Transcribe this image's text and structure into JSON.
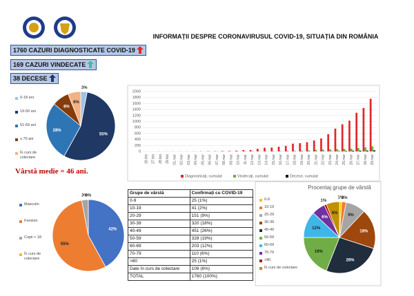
{
  "header": {
    "title": "INFORMAȚII DESPRE CORONAVIRUSUL COVID-19, SITUAȚIA DIN ROMÂNIA"
  },
  "stats": [
    "1760 CAZURI DIAGNOSTICATE COVID-19",
    "169 CAZURI VINDECATE",
    "38 DECESE"
  ],
  "average_age": "Vârstă medie = 46 ani.",
  "chart_data": [
    {
      "type": "pie",
      "categories": [
        "0-18 ani",
        "19-50 ani",
        "51-69 ani",
        "≥ 70 ani",
        "În curs de colectare"
      ],
      "values": [
        3,
        55,
        28,
        8,
        6
      ],
      "value_labels": [
        "3%",
        "55%",
        "28%",
        "8%",
        "6%"
      ],
      "colors": [
        "#9dc3e6",
        "#1f3864",
        "#2e75b6",
        "#843c0c",
        "#f4b183"
      ]
    },
    {
      "type": "bar",
      "categories": [
        "26.feb",
        "27.feb",
        "28.feb",
        "29.feb",
        "01.mar",
        "02.mar",
        "03.mar",
        "04.mar",
        "05.mar",
        "06.mar",
        "07.mar",
        "08.mar",
        "09.mar",
        "10.mar",
        "11.mar",
        "12.mar",
        "13.mar",
        "14.mar",
        "15.mar",
        "16.mar",
        "17.mar",
        "18.mar",
        "19.mar",
        "20.mar",
        "21.mar",
        "22.mar",
        "23.mar",
        "24.mar",
        "25.mar",
        "26.mar",
        "27.mar",
        "28.mar",
        "29.mar"
      ],
      "series": [
        {
          "name": "Diagnosticați, cumulat",
          "color": "#e0282b",
          "values": [
            1,
            1,
            3,
            3,
            3,
            3,
            3,
            4,
            6,
            9,
            9,
            15,
            15,
            25,
            45,
            49,
            89,
            123,
            131,
            158,
            184,
            260,
            277,
            308,
            367,
            433,
            576,
            762,
            906,
            1029,
            1292,
            1452,
            1760
          ]
        },
        {
          "name": "Vindecați, cumulat",
          "color": "#70ad47",
          "values": [
            0,
            0,
            0,
            0,
            0,
            0,
            0,
            0,
            0,
            3,
            3,
            3,
            3,
            3,
            6,
            6,
            6,
            9,
            9,
            9,
            16,
            19,
            25,
            31,
            52,
            64,
            73,
            79,
            86,
            94,
            115,
            139,
            169
          ]
        },
        {
          "name": "Decese, cumulat",
          "color": "#111111",
          "values": [
            0,
            0,
            0,
            0,
            0,
            0,
            0,
            0,
            0,
            0,
            0,
            0,
            0,
            0,
            0,
            0,
            0,
            0,
            0,
            0,
            0,
            0,
            0,
            0,
            0,
            2,
            7,
            11,
            17,
            24,
            26,
            29,
            38
          ]
        }
      ],
      "ylim": [
        0,
        2000
      ],
      "yticks": [
        0,
        200,
        400,
        600,
        800,
        1000,
        1200,
        1400,
        1600,
        1800,
        2000
      ],
      "grid": true,
      "legend": "bottom"
    },
    {
      "type": "pie",
      "categories": [
        "Masculin",
        "Feminin",
        "Copii < 18",
        "În curs de colectare"
      ],
      "values": [
        42,
        55,
        3,
        0
      ],
      "value_labels": [
        "42%",
        "55%",
        "3%",
        "0%"
      ],
      "colors": [
        "#4472c4",
        "#ed7d31",
        "#a5a5a5",
        "#ffc000"
      ]
    },
    {
      "type": "pie",
      "title": "Procentaj grupe de vârstă",
      "categories": [
        "0-9",
        "10-19",
        "20-29",
        "30-39",
        "40-49",
        "50-59",
        "60-69",
        "70-79",
        ">80",
        "În curs de colectare"
      ],
      "values": [
        1,
        2,
        9,
        18,
        26,
        19,
        12,
        6,
        1,
        6
      ],
      "value_labels": [
        "1%",
        "2%",
        "9%",
        "18%",
        "26%",
        "19%",
        "12%",
        "6%",
        "1%",
        "6%"
      ],
      "colors": [
        "#ffc000",
        "#ed7d31",
        "#a5a5a5",
        "#9e480e",
        "#1f2d3d",
        "#70ad47",
        "#3fb6e8",
        "#7030a0",
        "#c00000",
        "#bf9000"
      ]
    }
  ],
  "table": {
    "header": [
      "Grupe de vârstă",
      "Confirmați cu COVID-19"
    ],
    "rows": [
      [
        "0-9",
        "25 (1%)"
      ],
      [
        "10-19",
        "41 (2%)"
      ],
      [
        "20-29",
        "151 (9%)"
      ],
      [
        "30-39",
        "320 (18%)"
      ],
      [
        "40-49",
        "451 (26%)"
      ],
      [
        "50-59",
        "328 (19%)"
      ],
      [
        "60-69",
        "203 (12%)"
      ],
      [
        "70-79",
        "110 (6%)"
      ],
      [
        ">80",
        "25 (1%)"
      ],
      [
        "Date în curs de colectare",
        "106 (6%)"
      ],
      [
        "TOTAL",
        "1760 (100%)"
      ]
    ]
  }
}
